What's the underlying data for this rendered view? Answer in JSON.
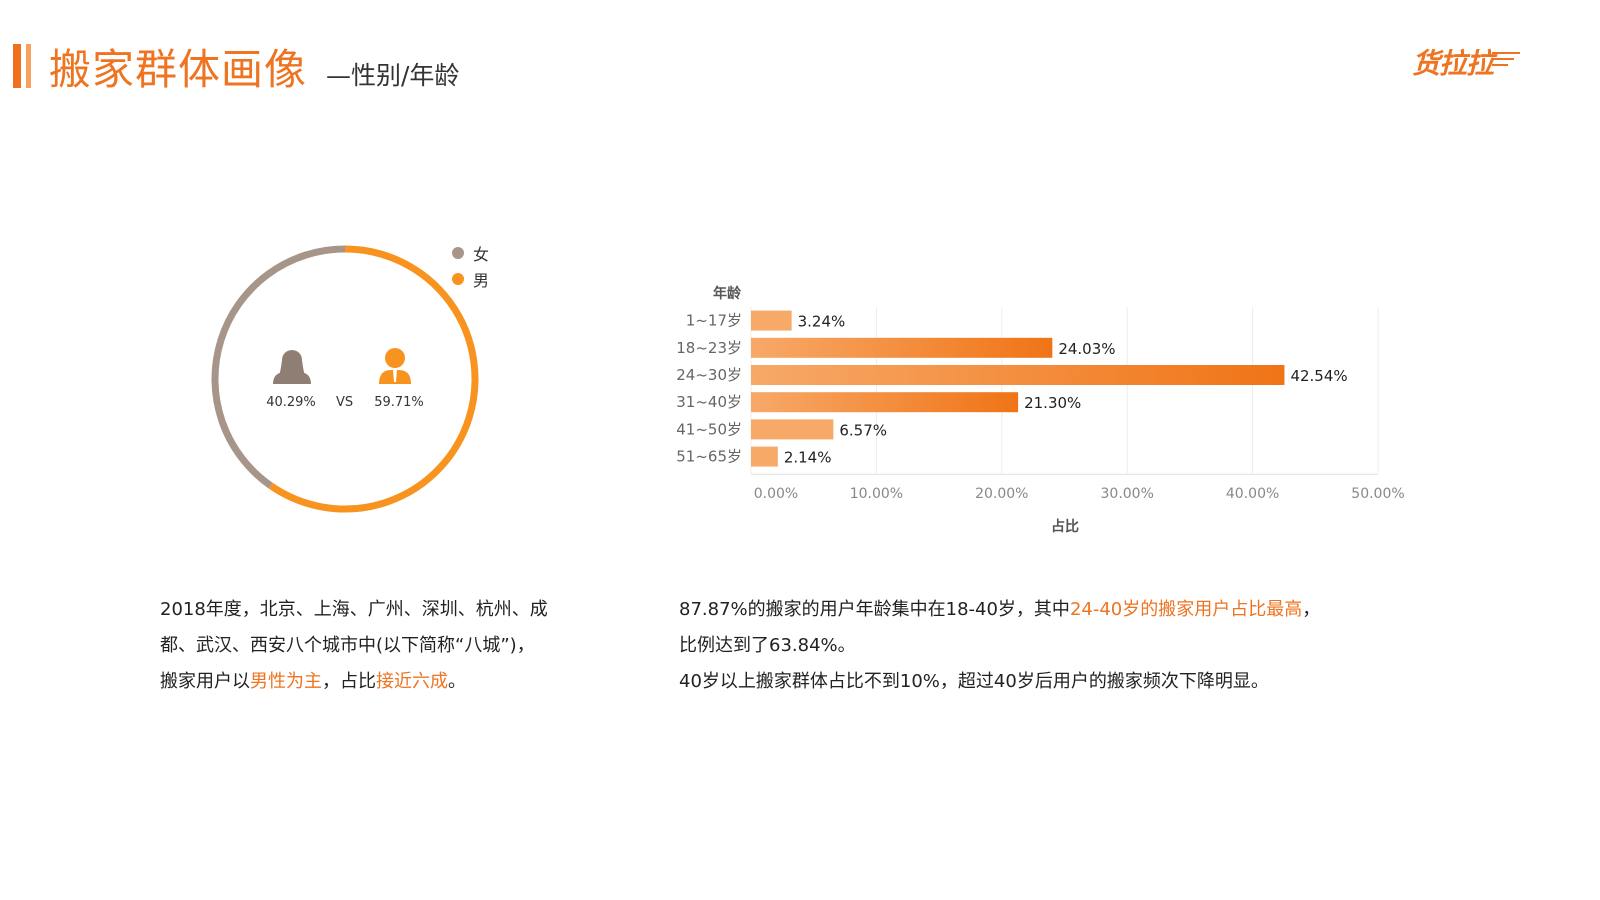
{
  "header": {
    "title_main": "搬家群体画像",
    "title_sub": "—性别/年龄",
    "brand": "货拉拉"
  },
  "gender": {
    "legend": [
      {
        "label": "女",
        "color": "#A8958A"
      },
      {
        "label": "男",
        "color": "#F7931E"
      }
    ],
    "female_pct": "40.29%",
    "male_pct": "59.71%",
    "vs_label": "VS",
    "female_icon": "female-user-icon",
    "male_icon": "male-user-icon"
  },
  "chart_data": [
    {
      "type": "pie",
      "categories": [
        "女",
        "男"
      ],
      "values": [
        40.29,
        59.71
      ],
      "colors": [
        "#A8958A",
        "#F7931E"
      ],
      "legend_position": "top-right"
    },
    {
      "type": "bar",
      "orientation": "horizontal",
      "categories": [
        "1~17岁",
        "18~23岁",
        "24~30岁",
        "31~40岁",
        "41~50岁",
        "51~65岁"
      ],
      "values": [
        3.24,
        24.03,
        42.54,
        21.3,
        6.57,
        2.14
      ],
      "value_labels": [
        "3.24%",
        "24.03%",
        "42.54%",
        "21.30%",
        "6.57%",
        "2.14%"
      ],
      "ylabel": "年龄",
      "xlabel": "占比",
      "xlim": [
        0,
        50
      ],
      "xticks": [
        "0.00%",
        "10.00%",
        "20.00%",
        "30.00%",
        "40.00%",
        "50.00%"
      ],
      "xtick_values": [
        0,
        10,
        20,
        30,
        40,
        50
      ],
      "grid": true,
      "colors": {
        "light": "#F7A968",
        "dark": "#F07416"
      }
    }
  ],
  "texts": {
    "left": {
      "l1": "2018年度，北京、上海、广州、深圳、杭州、成",
      "l2": "都、武汉、西安八个城市中(以下简称“八城”)，",
      "l3a": "搬家用户以",
      "l3b": "男性为主",
      "l3c": "，占比",
      "l3d": "接近六成",
      "l3e": "。"
    },
    "right": {
      "l1a": "87.87%的搬家的用户年龄集中在18-40岁，其中",
      "l1b": "24-40岁的搬家用户占比最高",
      "l1c": "，",
      "l2": "比例达到了63.84%。",
      "l3": "40岁以上搬家群体占比不到10%，超过40岁后用户的搬家频次下降明显。"
    }
  }
}
